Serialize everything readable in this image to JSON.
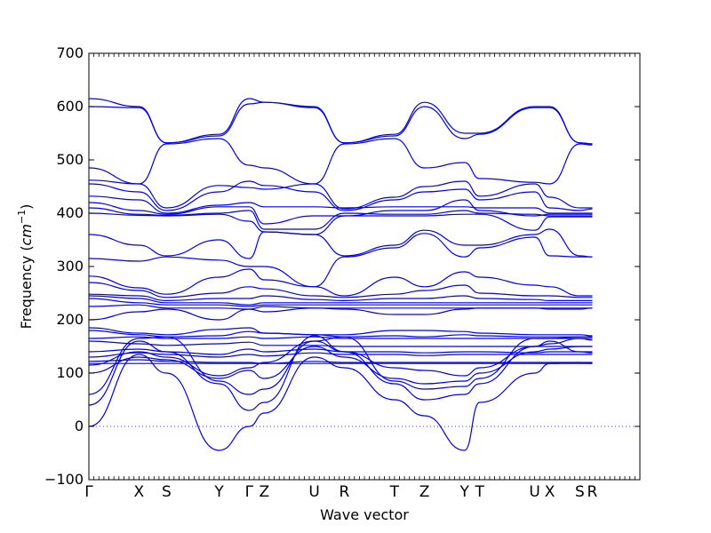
{
  "chart_data": {
    "type": "line",
    "title": "",
    "xlabel": "Wave vector",
    "ylabel_prefix": "Frequency (",
    "ylabel_unit": "cm",
    "ylabel_exp": "−1",
    "ylabel_suffix": ")",
    "ylim": [
      -100,
      700
    ],
    "yticks": [
      -100,
      0,
      100,
      200,
      300,
      400,
      500,
      600,
      700
    ],
    "xlim": [
      0,
      11
    ],
    "grid": false,
    "line_color": "#0000ee",
    "zero_line_color": "#3333ff",
    "high_symmetry_points": [
      {
        "label": "Γ",
        "x": 0
      },
      {
        "label": "X",
        "x": 1
      },
      {
        "label": "S",
        "x": 1.55
      },
      {
        "label": "Y",
        "x": 2.6
      },
      {
        "label": "Γ",
        "x": 3.2
      },
      {
        "label": "Z",
        "x": 3.5
      },
      {
        "label": "U",
        "x": 4.5
      },
      {
        "label": "R",
        "x": 5.1
      },
      {
        "label": "T",
        "x": 6.1
      },
      {
        "label": "Z",
        "x": 6.7
      },
      {
        "label": "Y",
        "x": 7.5
      },
      {
        "label": "T",
        "x": 7.8
      },
      {
        "label": "U",
        "x": 8.9
      },
      {
        "label": "X",
        "x": 9.2
      },
      {
        "label": "S",
        "x": 9.8
      },
      {
        "label": "R",
        "x": 10.05
      }
    ],
    "series": [
      {
        "x": [
          0,
          1,
          1.55,
          2.6,
          3.2,
          3.5,
          4.5,
          5.1,
          6.1,
          6.7,
          7.5,
          7.8,
          8.9,
          9.2,
          9.8,
          10.05
        ],
        "y": [
          615,
          600,
          532,
          548,
          615,
          608,
          600,
          532,
          548,
          608,
          550,
          550,
          600,
          600,
          532,
          530
        ]
      },
      {
        "x": [
          0,
          1,
          1.55,
          2.6,
          3.2,
          3.5,
          4.5,
          5.1,
          6.1,
          6.7,
          7.5,
          7.8,
          8.9,
          9.2,
          9.8,
          10.05
        ],
        "y": [
          600,
          598,
          532,
          545,
          605,
          608,
          598,
          532,
          545,
          600,
          540,
          548,
          598,
          598,
          532,
          530
        ]
      },
      {
        "x": [
          0,
          1,
          1.55,
          2.6,
          3.2,
          3.5,
          4.5,
          5.1,
          6.1,
          6.7,
          7.5,
          7.8,
          8.9,
          9.2,
          9.8,
          10.05
        ],
        "y": [
          485,
          455,
          530,
          540,
          490,
          485,
          455,
          530,
          540,
          485,
          495,
          465,
          458,
          455,
          530,
          528
        ]
      },
      {
        "x": [
          0,
          1,
          1.55,
          2.6,
          3.2,
          3.5,
          4.5,
          5.1,
          6.1,
          6.7,
          7.5,
          7.8,
          8.9,
          9.2,
          9.8,
          10.05
        ],
        "y": [
          462,
          455,
          410,
          452,
          448,
          445,
          455,
          408,
          430,
          450,
          460,
          432,
          455,
          430,
          410,
          410
        ]
      },
      {
        "x": [
          0,
          1,
          1.55,
          2.6,
          3.2,
          3.5,
          4.5,
          5.1,
          6.1,
          6.7,
          7.5,
          7.8,
          8.9,
          9.2,
          9.8,
          10.05
        ],
        "y": [
          455,
          440,
          405,
          440,
          460,
          452,
          440,
          405,
          425,
          440,
          445,
          425,
          440,
          410,
          405,
          408
        ]
      },
      {
        "x": [
          0,
          1,
          1.55,
          2.6,
          3.2,
          3.5,
          4.5,
          5.1,
          6.1,
          6.7,
          7.5,
          7.8,
          8.9,
          9.2,
          9.8,
          10.05
        ],
        "y": [
          432,
          425,
          400,
          415,
          420,
          412,
          412,
          410,
          412,
          412,
          412,
          410,
          410,
          400,
          400,
          400
        ]
      },
      {
        "x": [
          0,
          1,
          1.55,
          2.6,
          3.2,
          3.5,
          4.5,
          5.1,
          6.1,
          6.7,
          7.5,
          7.8,
          8.9,
          9.2,
          9.8,
          10.05
        ],
        "y": [
          420,
          405,
          398,
          412,
          412,
          380,
          395,
          395,
          405,
          405,
          425,
          405,
          395,
          398,
          398,
          398
        ]
      },
      {
        "x": [
          0,
          1,
          1.55,
          2.6,
          3.2,
          3.5,
          4.5,
          5.1,
          6.1,
          6.7,
          7.5,
          7.8,
          8.9,
          9.2,
          9.8,
          10.05
        ],
        "y": [
          410,
          398,
          396,
          400,
          405,
          370,
          370,
          400,
          398,
          398,
          405,
          400,
          398,
          395,
          395,
          395
        ]
      },
      {
        "x": [
          0,
          1,
          1.55,
          2.6,
          3.2,
          3.5,
          4.5,
          5.1,
          6.1,
          6.7,
          7.5,
          7.8,
          8.9,
          9.2,
          9.8,
          10.05
        ],
        "y": [
          400,
          396,
          395,
          398,
          385,
          365,
          360,
          395,
          395,
          395,
          398,
          398,
          368,
          393,
          393,
          393
        ]
      },
      {
        "x": [
          0,
          1,
          1.55,
          2.6,
          3.2,
          3.5,
          4.5,
          5.1,
          6.1,
          6.7,
          7.5,
          7.8,
          8.9,
          9.2,
          9.8,
          10.05
        ],
        "y": [
          360,
          340,
          320,
          350,
          315,
          365,
          360,
          320,
          340,
          368,
          340,
          340,
          360,
          370,
          320,
          318
        ]
      },
      {
        "x": [
          0,
          1,
          1.55,
          2.6,
          3.2,
          3.5,
          4.5,
          5.1,
          6.1,
          6.7,
          7.5,
          7.8,
          8.9,
          9.2,
          9.8,
          10.05
        ],
        "y": [
          315,
          310,
          318,
          312,
          300,
          300,
          262,
          318,
          335,
          362,
          318,
          335,
          355,
          320,
          318,
          318
        ]
      },
      {
        "x": [
          0,
          1,
          1.55,
          2.6,
          3.2,
          3.5,
          4.5,
          5.1,
          6.1,
          6.7,
          7.5,
          7.8,
          8.9,
          9.2,
          9.8,
          10.05
        ],
        "y": [
          282,
          260,
          248,
          280,
          295,
          275,
          262,
          245,
          280,
          262,
          290,
          280,
          265,
          262,
          245,
          245
        ]
      },
      {
        "x": [
          0,
          1,
          1.55,
          2.6,
          3.2,
          3.5,
          4.5,
          5.1,
          6.1,
          6.7,
          7.5,
          7.8,
          8.9,
          9.2,
          9.8,
          10.05
        ],
        "y": [
          270,
          255,
          242,
          250,
          262,
          258,
          245,
          242,
          248,
          255,
          265,
          250,
          245,
          245,
          242,
          242
        ]
      },
      {
        "x": [
          0,
          1,
          1.55,
          2.6,
          3.2,
          3.5,
          4.5,
          5.1,
          6.1,
          6.7,
          7.5,
          7.8,
          8.9,
          9.2,
          9.8,
          10.05
        ],
        "y": [
          248,
          245,
          236,
          240,
          240,
          245,
          238,
          236,
          240,
          240,
          245,
          240,
          238,
          236,
          236,
          236
        ]
      },
      {
        "x": [
          0,
          1,
          1.55,
          2.6,
          3.2,
          3.5,
          4.5,
          5.1,
          6.1,
          6.7,
          7.5,
          7.8,
          8.9,
          9.2,
          9.8,
          10.05
        ],
        "y": [
          245,
          240,
          232,
          232,
          228,
          232,
          232,
          232,
          232,
          232,
          232,
          232,
          232,
          232,
          232,
          232
        ]
      },
      {
        "x": [
          0,
          1,
          1.55,
          2.6,
          3.2,
          3.5,
          4.5,
          5.1,
          6.1,
          6.7,
          7.5,
          7.8,
          8.9,
          9.2,
          9.8,
          10.05
        ],
        "y": [
          240,
          232,
          228,
          228,
          225,
          228,
          228,
          228,
          228,
          228,
          228,
          228,
          228,
          228,
          228,
          228
        ]
      },
      {
        "x": [
          0,
          1,
          1.55,
          2.6,
          3.2,
          3.5,
          4.5,
          5.1,
          6.1,
          6.7,
          7.5,
          7.8,
          8.9,
          9.2,
          9.8,
          10.05
        ],
        "y": [
          225,
          228,
          222,
          222,
          220,
          225,
          222,
          222,
          222,
          222,
          222,
          222,
          222,
          222,
          222,
          222
        ]
      },
      {
        "x": [
          0,
          1,
          1.55,
          2.6,
          3.2,
          3.5,
          4.5,
          5.1,
          6.1,
          6.7,
          7.5,
          7.8,
          8.9,
          9.2,
          9.8,
          10.05
        ],
        "y": [
          200,
          215,
          220,
          200,
          220,
          215,
          222,
          220,
          210,
          210,
          220,
          222,
          222,
          220,
          220,
          222
        ]
      },
      {
        "x": [
          0,
          1,
          1.55,
          2.6,
          3.2,
          3.5,
          4.5,
          5.1,
          6.1,
          6.7,
          7.5,
          7.8,
          8.9,
          9.2,
          9.8,
          10.05
        ],
        "y": [
          185,
          175,
          172,
          182,
          185,
          175,
          172,
          172,
          180,
          180,
          178,
          175,
          172,
          172,
          172,
          170
        ]
      },
      {
        "x": [
          0,
          1,
          1.55,
          2.6,
          3.2,
          3.5,
          4.5,
          5.1,
          6.1,
          6.7,
          7.5,
          7.8,
          8.9,
          9.2,
          9.8,
          10.05
        ],
        "y": [
          180,
          172,
          168,
          170,
          178,
          175,
          172,
          168,
          170,
          168,
          172,
          170,
          168,
          168,
          168,
          168
        ]
      },
      {
        "x": [
          0,
          1,
          1.55,
          2.6,
          3.2,
          3.5,
          4.5,
          5.1,
          6.1,
          6.7,
          7.5,
          7.8,
          8.9,
          9.2,
          9.8,
          10.05
        ],
        "y": [
          165,
          168,
          165,
          165,
          168,
          165,
          168,
          165,
          165,
          165,
          165,
          165,
          165,
          165,
          165,
          165
        ]
      },
      {
        "x": [
          0,
          1,
          1.55,
          2.6,
          3.2,
          3.5,
          4.5,
          5.1,
          6.1,
          6.7,
          7.5,
          7.8,
          8.9,
          9.2,
          9.8,
          10.05
        ],
        "y": [
          160,
          155,
          152,
          155,
          158,
          152,
          152,
          150,
          150,
          150,
          150,
          150,
          150,
          150,
          150,
          150
        ]
      },
      {
        "x": [
          0,
          1,
          1.55,
          2.6,
          3.2,
          3.5,
          4.5,
          5.1,
          6.1,
          6.7,
          7.5,
          7.8,
          8.9,
          9.2,
          9.8,
          10.05
        ],
        "y": [
          140,
          145,
          140,
          135,
          145,
          140,
          145,
          140,
          140,
          138,
          140,
          140,
          138,
          140,
          140,
          138
        ]
      },
      {
        "x": [
          0,
          1,
          1.55,
          2.6,
          3.2,
          3.5,
          4.5,
          5.1,
          6.1,
          6.7,
          7.5,
          7.8,
          8.9,
          9.2,
          9.8,
          10.05
        ],
        "y": [
          130,
          138,
          135,
          130,
          135,
          132,
          138,
          135,
          135,
          133,
          135,
          135,
          135,
          135,
          135,
          135
        ]
      },
      {
        "x": [
          0,
          1,
          1.55,
          2.6,
          3.2,
          3.5,
          4.5,
          5.1,
          6.1,
          6.7,
          7.5,
          7.8,
          8.9,
          9.2,
          9.8,
          10.05
        ],
        "y": [
          122,
          125,
          122,
          120,
          120,
          118,
          122,
          120,
          120,
          120,
          120,
          120,
          120,
          120,
          120,
          118
        ]
      },
      {
        "x": [
          0,
          1,
          1.55,
          2.6,
          3.2,
          3.5,
          4.5,
          5.1,
          6.1,
          6.7,
          7.5,
          7.8,
          8.9,
          9.2,
          9.8,
          10.05
        ],
        "y": [
          118,
          118,
          118,
          118,
          118,
          118,
          118,
          118,
          118,
          118,
          118,
          118,
          118,
          118,
          118,
          118
        ]
      },
      {
        "x": [
          0,
          1,
          1.55,
          2.6,
          3.2,
          3.5,
          4.5,
          5.1,
          6.1,
          6.7,
          7.5,
          7.8,
          8.9,
          9.2,
          9.8,
          10.05
        ],
        "y": [
          115,
          140,
          130,
          95,
          110,
          120,
          160,
          140,
          110,
          105,
          95,
          110,
          150,
          155,
          165,
          162
        ]
      },
      {
        "x": [
          0,
          1,
          1.55,
          2.6,
          3.2,
          3.5,
          4.5,
          5.1,
          6.1,
          6.7,
          7.5,
          7.8,
          8.9,
          9.2,
          9.8,
          10.05
        ],
        "y": [
          100,
          130,
          125,
          90,
          105,
          90,
          150,
          130,
          90,
          80,
          85,
          100,
          140,
          145,
          150,
          150
        ]
      },
      {
        "x": [
          0,
          1,
          1.55,
          2.6,
          3.2,
          3.5,
          4.5,
          5.1,
          6.1,
          6.7,
          7.5,
          7.8,
          8.9,
          9.2,
          9.8,
          10.05
        ],
        "y": [
          60,
          165,
          168,
          85,
          60,
          70,
          160,
          168,
          85,
          70,
          75,
          90,
          165,
          165,
          168,
          168
        ]
      },
      {
        "x": [
          0,
          1,
          1.55,
          2.6,
          3.2,
          3.5,
          4.5,
          5.1,
          6.1,
          6.7,
          7.5,
          7.8,
          8.9,
          9.2,
          9.8,
          10.05
        ],
        "y": [
          40,
          160,
          140,
          80,
          30,
          45,
          170,
          140,
          80,
          50,
          60,
          80,
          150,
          160,
          140,
          140
        ]
      },
      {
        "x": [
          0,
          1,
          1.55,
          2.6,
          3.2,
          3.5,
          4.5,
          5.1,
          6.1,
          6.7,
          7.5,
          7.8,
          8.9,
          9.2,
          9.8,
          10.05
        ],
        "y": [
          0,
          135,
          100,
          -45,
          0,
          25,
          130,
          110,
          50,
          20,
          -45,
          45,
          100,
          118,
          120,
          120
        ]
      }
    ]
  }
}
